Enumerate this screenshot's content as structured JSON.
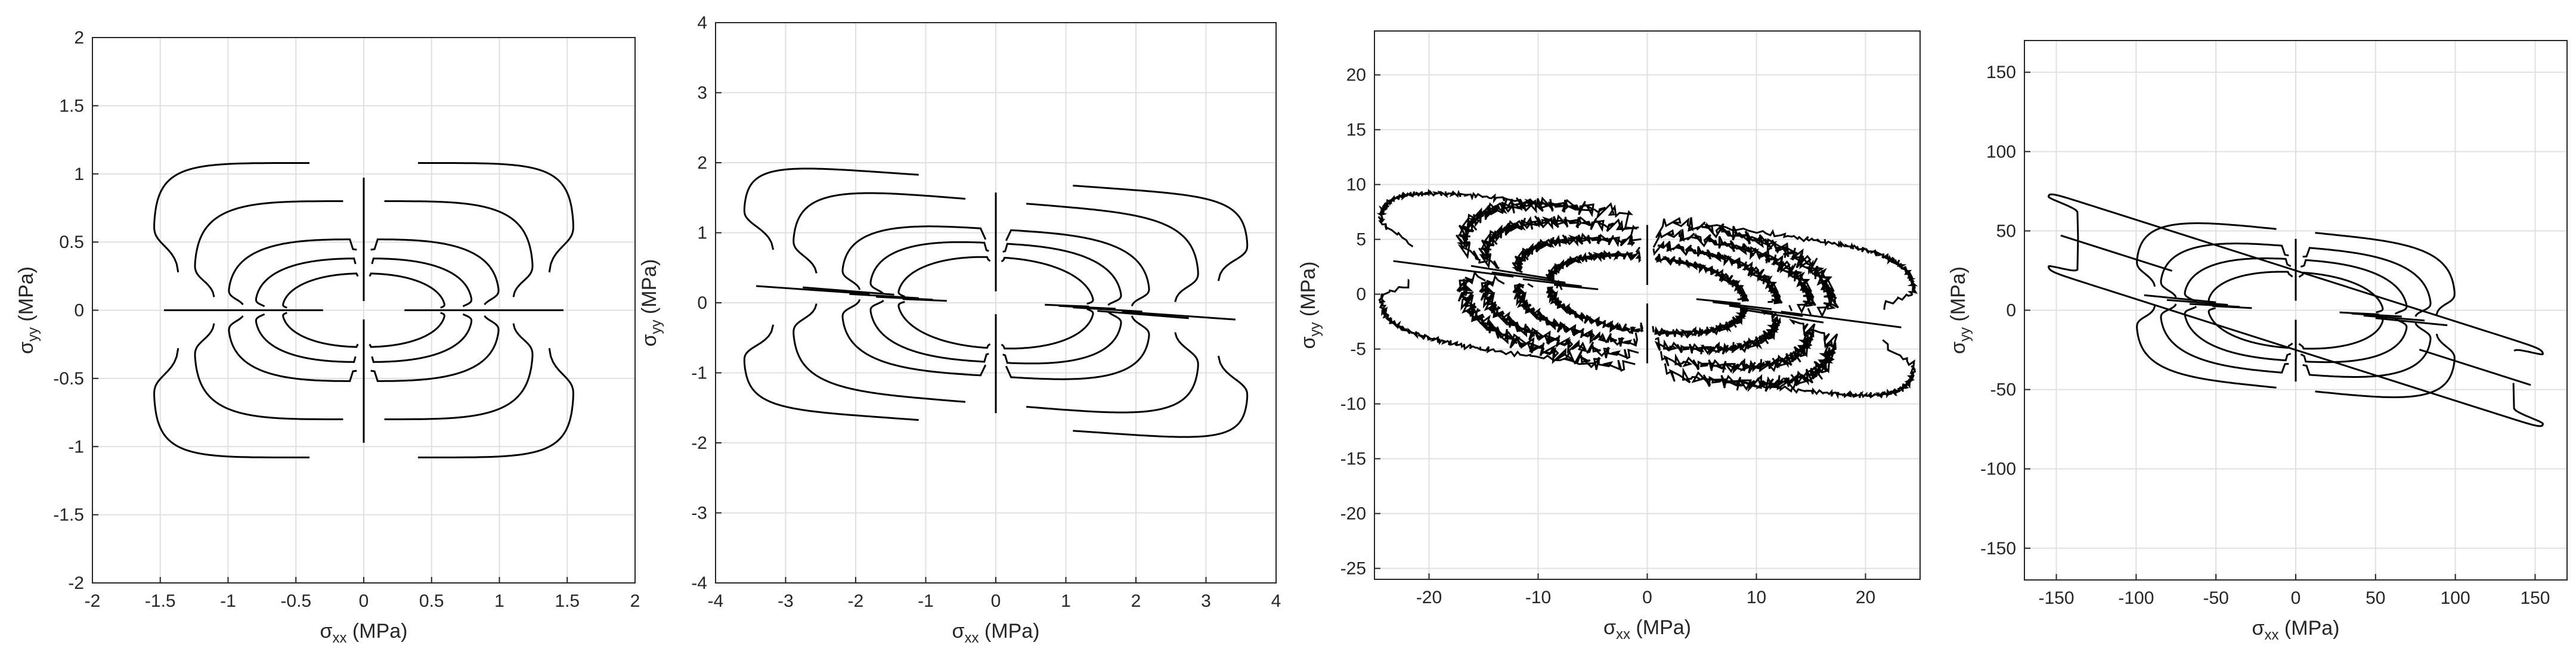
{
  "colors": {
    "curve": "#000000",
    "axis": "#262626",
    "grid": "#e0e0e0",
    "background": "#ffffff"
  },
  "chart_data": [
    {
      "type": "line",
      "panel": 1,
      "xlabel": {
        "symbol": "σ",
        "sub": "xx",
        "unit": " (MPa)"
      },
      "ylabel": {
        "symbol": "σ",
        "sub": "yy",
        "unit": " (MPa)"
      },
      "xlim": [
        -2,
        2
      ],
      "ylim": [
        -2,
        2
      ],
      "xticks": [
        -2,
        -1.5,
        -1,
        -0.5,
        0,
        0.5,
        1,
        1.5,
        2
      ],
      "yticks": [
        -2,
        -1.5,
        -1,
        -0.5,
        0,
        0.5,
        1,
        1.5,
        2
      ],
      "xtick_labels": [
        "-2",
        "-1.5",
        "-1",
        "-0.5",
        "0",
        "0.5",
        "1",
        "1.5",
        "2"
      ],
      "ytick_labels": [
        "-2",
        "-1.5",
        "-1",
        "-0.5",
        "0",
        "0.5",
        "1",
        "1.5",
        "2"
      ],
      "grid": true,
      "loops": [
        {
          "a": 0.6,
          "b": 0.27,
          "p": 2.2,
          "tilt": 0,
          "notch_x": 0.08,
          "notch_y": 0.06,
          "rough": 0
        },
        {
          "a": 0.8,
          "b": 0.38,
          "p": 2.6,
          "tilt": 0,
          "notch_x": 0.1,
          "notch_y": 0.08,
          "rough": 0
        },
        {
          "a": 1.0,
          "b": 0.52,
          "p": 3.2,
          "tilt": 0,
          "notch_x": 0.1,
          "notch_y": 0.1,
          "rough": 0
        },
        {
          "a": 1.25,
          "b": 0.8,
          "p": 4.5,
          "tilt": 0,
          "notch_x": 0.12,
          "notch_y": 0.1,
          "rough": 0
        },
        {
          "a": 1.55,
          "b": 1.08,
          "p": 7,
          "tilt": 0,
          "notch_x": 0.15,
          "notch_y": 0.1,
          "rough": 0
        }
      ]
    },
    {
      "type": "line",
      "panel": 2,
      "xlabel": {
        "symbol": "σ",
        "sub": "xx",
        "unit": " (MPa)"
      },
      "ylabel": {
        "symbol": "σ",
        "sub": "yy",
        "unit": " (MPa)"
      },
      "xlim": [
        -4,
        4
      ],
      "ylim": [
        -4,
        4
      ],
      "xticks": [
        -4,
        -3,
        -2,
        -1,
        0,
        1,
        2,
        3,
        4
      ],
      "yticks": [
        -4,
        -3,
        -2,
        -1,
        0,
        1,
        2,
        3,
        4
      ],
      "xtick_labels": [
        "-4",
        "-3",
        "-2",
        "-1",
        "0",
        "1",
        "2",
        "3",
        "4"
      ],
      "ytick_labels": [
        "-4",
        "-3",
        "-2",
        "-1",
        "0",
        "1",
        "2",
        "3",
        "4"
      ],
      "grid": true,
      "loops": [
        {
          "a": 1.4,
          "b": 0.65,
          "p": 2.2,
          "tilt": -0.04,
          "notch_x": 0.15,
          "notch_y": 0.12,
          "rough": 0
        },
        {
          "a": 1.8,
          "b": 0.85,
          "p": 2.8,
          "tilt": -0.05,
          "notch_x": 0.15,
          "notch_y": 0.15,
          "rough": 0
        },
        {
          "a": 2.2,
          "b": 1.05,
          "p": 3.5,
          "tilt": -0.06,
          "notch_x": 0.2,
          "notch_y": 0.15,
          "rough": 0
        },
        {
          "a": 2.9,
          "b": 1.45,
          "p": 5,
          "tilt": -0.08,
          "notch_x": 0.2,
          "notch_y": 0.2,
          "rough": 0
        },
        {
          "a": 3.6,
          "b": 1.75,
          "p": 8,
          "tilt": -0.07,
          "notch_x": 0.25,
          "notch_y": 0.2,
          "rough": 0
        }
      ]
    },
    {
      "type": "line",
      "panel": 3,
      "xlabel": {
        "symbol": "σ",
        "sub": "xx",
        "unit": " (MPa)"
      },
      "ylabel": {
        "symbol": "σ",
        "sub": "yy",
        "unit": " (MPa)"
      },
      "xlim": [
        -25,
        25
      ],
      "ylim": [
        -26,
        24
      ],
      "xticks": [
        -20,
        -10,
        0,
        10,
        20
      ],
      "yticks": [
        -25,
        -20,
        -15,
        -10,
        -5,
        0,
        5,
        10,
        15,
        20
      ],
      "xtick_labels": [
        "-20",
        "-10",
        "0",
        "10",
        "20"
      ],
      "ytick_labels": [
        "-25",
        "-20",
        "-15",
        "-10",
        "-5",
        "0",
        "5",
        "10",
        "15",
        "20"
      ],
      "grid": true,
      "loops": [
        {
          "a": 9,
          "b": 3.4,
          "p": 2.2,
          "tilt": -0.1,
          "notch_x": 0.8,
          "notch_y": 0.8,
          "rough": 0.4
        },
        {
          "a": 12,
          "b": 4.6,
          "p": 2.6,
          "tilt": -0.12,
          "notch_x": 1.0,
          "notch_y": 0.9,
          "rough": 0.5
        },
        {
          "a": 15,
          "b": 5.8,
          "p": 3,
          "tilt": -0.14,
          "notch_x": 1.0,
          "notch_y": 1.0,
          "rough": 0.6
        },
        {
          "a": 17,
          "b": 7.0,
          "p": 3.2,
          "tilt": -0.16,
          "notch_x": 1.2,
          "notch_y": 1.0,
          "rough": 0.7
        },
        {
          "a": 24.5,
          "b": 7.0,
          "p": 6,
          "tilt": -0.13,
          "notch_x": 1.5,
          "notch_y": 1.2,
          "rough": 0.25
        }
      ]
    },
    {
      "type": "line",
      "panel": 4,
      "xlabel": {
        "symbol": "σ",
        "sub": "xx",
        "unit": " (MPa)"
      },
      "ylabel": {
        "symbol": "σ",
        "sub": "yy",
        "unit": " (MPa)"
      },
      "xlim": [
        -170,
        170
      ],
      "ylim": [
        -170,
        170
      ],
      "xticks": [
        -150,
        -100,
        -50,
        0,
        50,
        100,
        150
      ],
      "yticks": [
        -150,
        -100,
        -50,
        0,
        50,
        100,
        150
      ],
      "xtick_labels": [
        "-150",
        "-100",
        "-50",
        "0",
        "50",
        "100",
        "150"
      ],
      "ytick_labels": [
        "-150",
        "-100",
        "-50",
        "0",
        "50",
        "100",
        "150"
      ],
      "grid": true,
      "loops": [
        {
          "a": 55,
          "b": 24,
          "p": 2.2,
          "tilt": -0.05,
          "notch_x": 3,
          "notch_y": 3,
          "rough": 0
        },
        {
          "a": 70,
          "b": 32,
          "p": 2.6,
          "tilt": -0.06,
          "notch_x": 4,
          "notch_y": 4,
          "rough": 0
        },
        {
          "a": 85,
          "b": 40,
          "p": 3.2,
          "tilt": -0.08,
          "notch_x": 4,
          "notch_y": 4,
          "rough": 0
        },
        {
          "a": 100,
          "b": 50,
          "p": 4.5,
          "tilt": -0.1,
          "notch_x": 5,
          "notch_y": 5,
          "rough": 0
        },
        {
          "a": 155,
          "b": 25,
          "p": 30,
          "tilt": -0.32,
          "notch_x": 5,
          "notch_y": 5,
          "rough": 0
        }
      ]
    }
  ]
}
